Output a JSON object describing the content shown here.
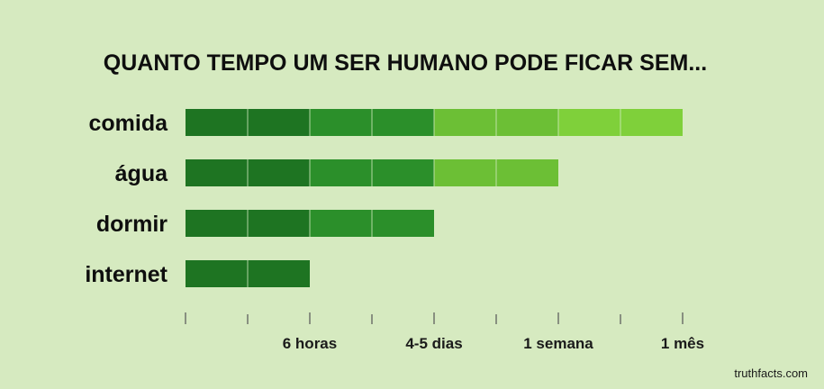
{
  "chart_data": {
    "type": "bar",
    "title": "QUANTO TEMPO UM SER HUMANO PODE FICAR SEM...",
    "categories": [
      "comida",
      "água",
      "dormir",
      "internet"
    ],
    "values": [
      8,
      6,
      4,
      2
    ],
    "xlim": [
      0,
      8
    ],
    "x_tick_labels": [
      {
        "at": 2,
        "label": "6 horas"
      },
      {
        "at": 4,
        "label": "4-5 dias"
      },
      {
        "at": 6,
        "label": "1 semana"
      },
      {
        "at": 8,
        "label": "1 mês"
      }
    ],
    "segment_colors": [
      "#1e7422",
      "#1e7422",
      "#2b8f2a",
      "#2b8f2a",
      "#6cbf35",
      "#6cbf35",
      "#7fd03a",
      "#7fd03a"
    ],
    "grid": false
  },
  "credit": "truthfacts.com"
}
